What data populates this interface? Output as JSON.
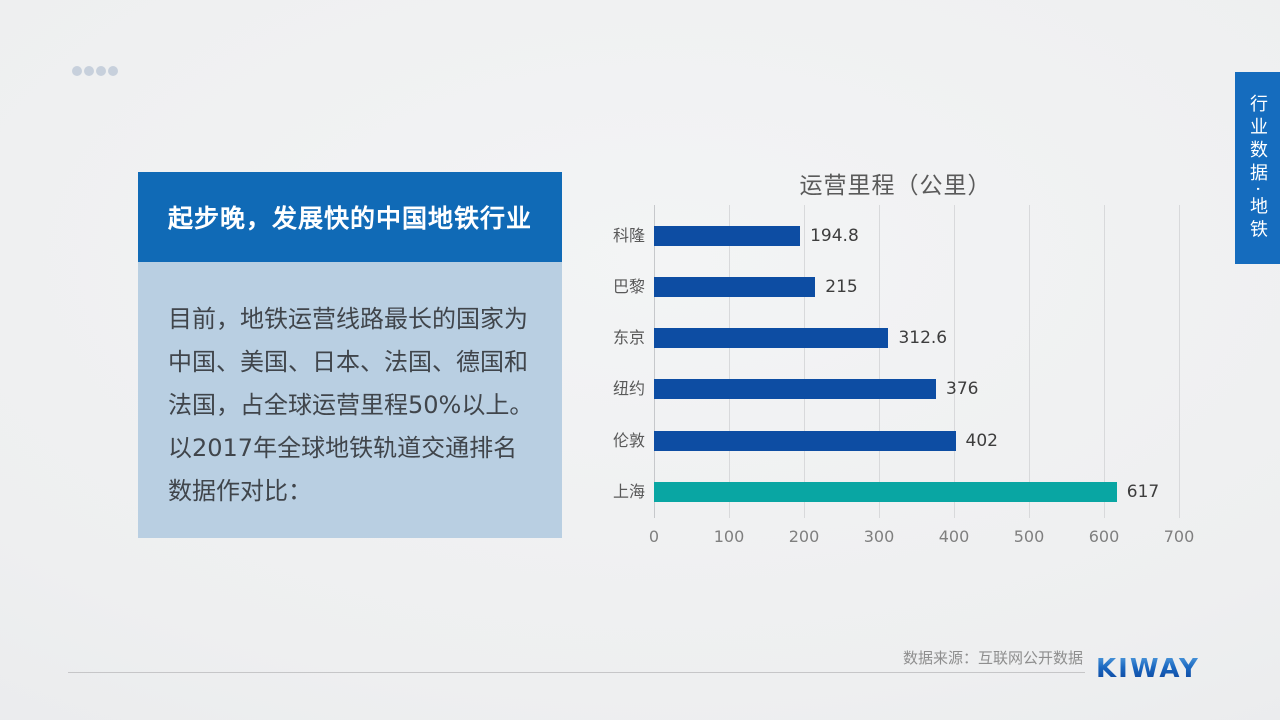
{
  "colors": {
    "title_box_bg": "#106ab6",
    "intro_box_bg": "#b9cfe2",
    "side_tab_bg": "#156cbe",
    "bar_blue": "#0d4da3",
    "bar_teal": "#09a6a3"
  },
  "title_box": {
    "text": "起步晚，发展快的中国地铁行业"
  },
  "intro_box": {
    "lines": [
      "目前，地铁运营线路最长的国家为",
      "中国、美国、日本、法国、德国和",
      "法国，占全球运营里程50%以上。",
      "以2017年全球地铁轨道交通排名",
      "数据作对比："
    ]
  },
  "chart_data": {
    "type": "bar",
    "orientation": "horizontal",
    "title": "运营里程（公里）",
    "categories": [
      "科隆",
      "巴黎",
      "东京",
      "纽约",
      "伦敦",
      "上海"
    ],
    "values": [
      194.8,
      215,
      312.6,
      376,
      402,
      617
    ],
    "value_labels": [
      "194.8",
      "215",
      "312.6",
      "376",
      "402",
      "617"
    ],
    "xlim": [
      0,
      700
    ],
    "x_ticks": [
      0,
      100,
      200,
      300,
      400,
      500,
      600,
      700
    ],
    "grid": true,
    "legend": false,
    "bar_color": "#0d4da3",
    "highlight_index": 5,
    "highlight_color": "#09a6a3"
  },
  "side_tab": {
    "text": "行业数据·地铁"
  },
  "footer": {
    "source": "数据来源：互联网公开数据",
    "logo": "KIWAY"
  }
}
